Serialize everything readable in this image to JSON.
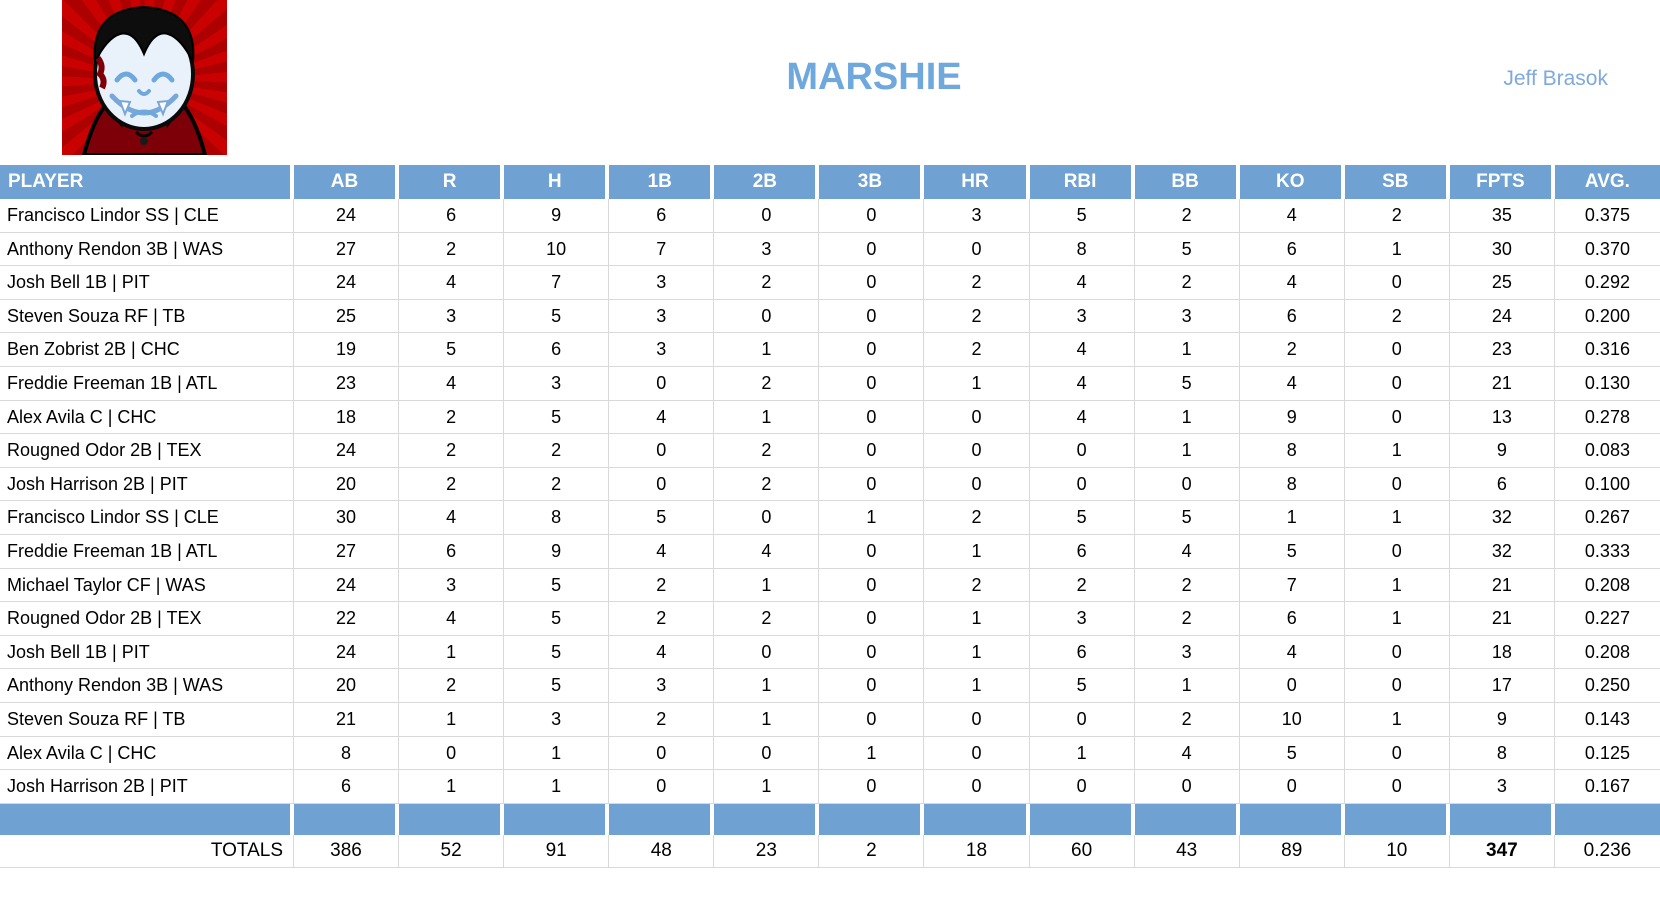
{
  "header": {
    "team_name": "MARSHIE",
    "owner_name": "Jeff Brasok",
    "logo": "vampire-mascot"
  },
  "colors": {
    "header_blue": "#6FA1D2",
    "title_blue": "#6FA8DC",
    "owner_blue": "#7FA9DC",
    "grid_line": "#D9D9D9",
    "logo_red": "#C00000"
  },
  "table": {
    "columns": [
      "PLAYER",
      "AB",
      "R",
      "H",
      "1B",
      "2B",
      "3B",
      "HR",
      "RBI",
      "BB",
      "KO",
      "SB",
      "FPTS",
      "AVG."
    ],
    "rows": [
      {
        "player": "Francisco Lindor SS | CLE",
        "stats": [
          "24",
          "6",
          "9",
          "6",
          "0",
          "0",
          "3",
          "5",
          "2",
          "4",
          "2",
          "35",
          "0.375"
        ]
      },
      {
        "player": "Anthony Rendon 3B | WAS",
        "stats": [
          "27",
          "2",
          "10",
          "7",
          "3",
          "0",
          "0",
          "8",
          "5",
          "6",
          "1",
          "30",
          "0.370"
        ]
      },
      {
        "player": "Josh Bell 1B | PIT",
        "stats": [
          "24",
          "4",
          "7",
          "3",
          "2",
          "0",
          "2",
          "4",
          "2",
          "4",
          "0",
          "25",
          "0.292"
        ]
      },
      {
        "player": "Steven Souza RF | TB",
        "stats": [
          "25",
          "3",
          "5",
          "3",
          "0",
          "0",
          "2",
          "3",
          "3",
          "6",
          "2",
          "24",
          "0.200"
        ]
      },
      {
        "player": "Ben Zobrist 2B | CHC",
        "stats": [
          "19",
          "5",
          "6",
          "3",
          "1",
          "0",
          "2",
          "4",
          "1",
          "2",
          "0",
          "23",
          "0.316"
        ]
      },
      {
        "player": "Freddie Freeman 1B | ATL",
        "stats": [
          "23",
          "4",
          "3",
          "0",
          "2",
          "0",
          "1",
          "4",
          "5",
          "4",
          "0",
          "21",
          "0.130"
        ]
      },
      {
        "player": "Alex Avila C | CHC",
        "stats": [
          "18",
          "2",
          "5",
          "4",
          "1",
          "0",
          "0",
          "4",
          "1",
          "9",
          "0",
          "13",
          "0.278"
        ]
      },
      {
        "player": "Rougned Odor 2B | TEX",
        "stats": [
          "24",
          "2",
          "2",
          "0",
          "2",
          "0",
          "0",
          "0",
          "1",
          "8",
          "1",
          "9",
          "0.083"
        ]
      },
      {
        "player": "Josh Harrison 2B | PIT",
        "stats": [
          "20",
          "2",
          "2",
          "0",
          "2",
          "0",
          "0",
          "0",
          "0",
          "8",
          "0",
          "6",
          "0.100"
        ]
      },
      {
        "player": "Francisco Lindor SS | CLE",
        "stats": [
          "30",
          "4",
          "8",
          "5",
          "0",
          "1",
          "2",
          "5",
          "5",
          "1",
          "1",
          "32",
          "0.267"
        ]
      },
      {
        "player": "Freddie Freeman 1B | ATL",
        "stats": [
          "27",
          "6",
          "9",
          "4",
          "4",
          "0",
          "1",
          "6",
          "4",
          "5",
          "0",
          "32",
          "0.333"
        ]
      },
      {
        "player": "Michael Taylor CF | WAS",
        "stats": [
          "24",
          "3",
          "5",
          "2",
          "1",
          "0",
          "2",
          "2",
          "2",
          "7",
          "1",
          "21",
          "0.208"
        ]
      },
      {
        "player": "Rougned Odor 2B | TEX",
        "stats": [
          "22",
          "4",
          "5",
          "2",
          "2",
          "0",
          "1",
          "3",
          "2",
          "6",
          "1",
          "21",
          "0.227"
        ]
      },
      {
        "player": "Josh Bell 1B | PIT",
        "stats": [
          "24",
          "1",
          "5",
          "4",
          "0",
          "0",
          "1",
          "6",
          "3",
          "4",
          "0",
          "18",
          "0.208"
        ]
      },
      {
        "player": "Anthony Rendon 3B | WAS",
        "stats": [
          "20",
          "2",
          "5",
          "3",
          "1",
          "0",
          "1",
          "5",
          "1",
          "0",
          "0",
          "17",
          "0.250"
        ]
      },
      {
        "player": "Steven Souza RF | TB",
        "stats": [
          "21",
          "1",
          "3",
          "2",
          "1",
          "0",
          "0",
          "0",
          "2",
          "10",
          "1",
          "9",
          "0.143"
        ]
      },
      {
        "player": "Alex Avila C | CHC",
        "stats": [
          "8",
          "0",
          "1",
          "0",
          "0",
          "1",
          "0",
          "1",
          "4",
          "5",
          "0",
          "8",
          "0.125"
        ]
      },
      {
        "player": "Josh Harrison 2B | PIT",
        "stats": [
          "6",
          "1",
          "1",
          "0",
          "1",
          "0",
          "0",
          "0",
          "0",
          "0",
          "0",
          "3",
          "0.167"
        ]
      }
    ],
    "totals_label": "TOTALS",
    "totals": [
      "386",
      "52",
      "91",
      "48",
      "23",
      "2",
      "18",
      "60",
      "43",
      "89",
      "10",
      "347",
      "0.236"
    ]
  }
}
